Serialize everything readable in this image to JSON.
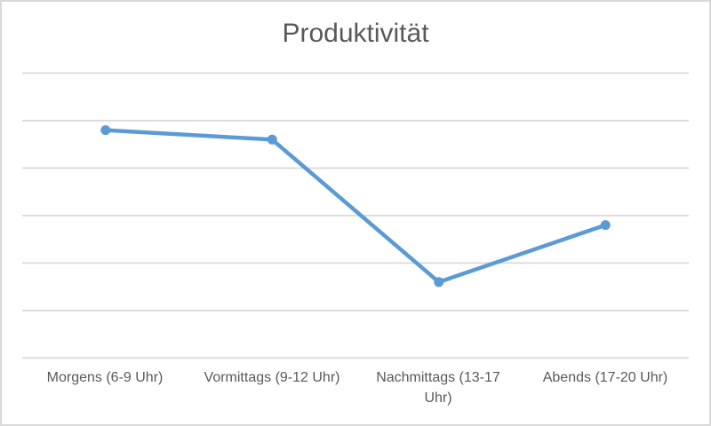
{
  "chart_data": {
    "type": "line",
    "title": "Produktivität",
    "categories": [
      "Morgens (6-9 Uhr)",
      "Vormittags (9-12 Uhr)",
      "Nachmittags (13-17 Uhr)",
      "Abends (17-20 Uhr)"
    ],
    "series": [
      {
        "name": "Produktivität",
        "values": [
          4.8,
          4.6,
          1.6,
          2.8
        ]
      }
    ],
    "xlabel": "",
    "ylabel": "",
    "ylim": [
      0,
      6
    ],
    "y_major_unit": 1,
    "y_axis_tick_labels_visible": false,
    "grid": true,
    "legend_position": "none",
    "marker_style": "circle",
    "colors": {
      "line": "#5B9BD5",
      "marker": "#5B9BD5",
      "grid": "#D9D9D9",
      "axis": "#D9D9D9",
      "title_text": "#595959",
      "label_text": "#595959",
      "background": "#FFFFFF",
      "border": "#D9D9D9"
    }
  }
}
